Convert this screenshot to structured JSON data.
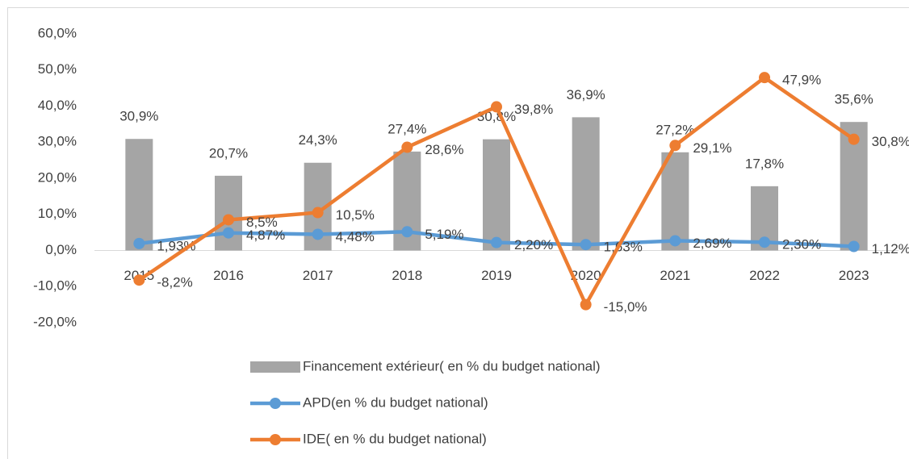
{
  "chart_data": {
    "type": "bar",
    "categories": [
      "2015",
      "2016",
      "2017",
      "2018",
      "2019",
      "2020",
      "2021",
      "2022",
      "2023"
    ],
    "series": [
      {
        "name": "Financement extérieur( en % du budget national)",
        "type": "bar",
        "color": "#a5a5a5",
        "values": [
          30.9,
          20.7,
          24.3,
          27.4,
          30.8,
          36.9,
          27.2,
          17.8,
          35.6
        ],
        "value_labels": [
          "30,9%",
          "20,7%",
          "24,3%",
          "27,4%",
          "30,8%",
          "36,9%",
          "27,2%",
          "17,8%",
          "35,6%"
        ]
      },
      {
        "name": "APD(en % du budget national)",
        "type": "line",
        "color": "#5b9bd5",
        "values": [
          1.93,
          4.87,
          4.48,
          5.19,
          2.2,
          1.63,
          2.69,
          2.3,
          1.12
        ],
        "value_labels": [
          "1,93%",
          "4,87%",
          "4,48%",
          "5,19%",
          "2,20%",
          "1,63%",
          "2,69%",
          "2,30%",
          "1,12%"
        ]
      },
      {
        "name": "IDE( en % du budget national)",
        "type": "line",
        "color": "#ed7d31",
        "values": [
          -8.2,
          8.5,
          10.5,
          28.6,
          39.8,
          -15.0,
          29.1,
          47.9,
          30.8
        ],
        "value_labels": [
          "-8,2%",
          "8,5%",
          "10,5%",
          "28,6%",
          "39,8%",
          "-15,0%",
          "29,1%",
          "47,9%",
          "30,8%"
        ]
      }
    ],
    "ylim": [
      -20,
      60
    ],
    "yticks": [
      {
        "value": -20,
        "label": "-20,0%"
      },
      {
        "value": -10,
        "label": "-10,0%"
      },
      {
        "value": 0,
        "label": "0,0%"
      },
      {
        "value": 10,
        "label": "10,0%"
      },
      {
        "value": 20,
        "label": "20,0%"
      },
      {
        "value": 30,
        "label": "30,0%"
      },
      {
        "value": 40,
        "label": "40,0%"
      },
      {
        "value": 50,
        "label": "50,0%"
      },
      {
        "value": 60,
        "label": "60,0%"
      }
    ],
    "grid": false,
    "legend": "bottom"
  }
}
